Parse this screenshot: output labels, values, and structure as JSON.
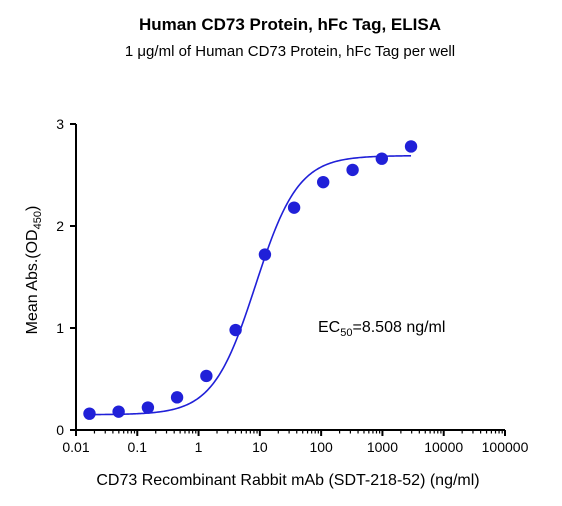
{
  "chart_data": {
    "type": "scatter",
    "title": "Human CD73 Protein, hFc Tag, ELISA",
    "subtitle": "1 μg/ml of Human CD73 Protein, hFc Tag per well",
    "xlabel": "CD73 Recombinant Rabbit mAb (SDT-218-52) (ng/ml)",
    "ylabel_main": "Mean Abs.(OD",
    "ylabel_sub": "450",
    "ylabel_end": ")",
    "x_scale": "log",
    "xlim": [
      0.01,
      100000
    ],
    "ylim": [
      0,
      3
    ],
    "x_ticks": [
      0.01,
      0.1,
      1,
      10,
      100,
      1000,
      10000,
      100000
    ],
    "x_tick_labels": [
      "0.01",
      "0.1",
      "1",
      "10",
      "100",
      "1000",
      "10000",
      "100000"
    ],
    "y_ticks": [
      0,
      1,
      2,
      3
    ],
    "y_tick_labels": [
      "0",
      "1",
      "2",
      "3"
    ],
    "grid": false,
    "legend": "none",
    "series": [
      {
        "x": [
          0.0166,
          0.0496,
          0.149,
          0.446,
          1.34,
          4.02,
          12.1,
          36.2,
          108,
          326,
          977,
          2930
        ],
        "y": [
          0.16,
          0.18,
          0.22,
          0.32,
          0.53,
          0.98,
          1.72,
          2.18,
          2.43,
          2.55,
          2.66,
          2.78
        ],
        "fit": {
          "bottom": 0.15,
          "top": 2.69,
          "ec50": 8.508,
          "hill": 1.25
        }
      }
    ],
    "color": "#2020d8",
    "annotation": {
      "main": "EC",
      "sub": "50",
      "rest": "=8.508 ng/ml"
    }
  }
}
